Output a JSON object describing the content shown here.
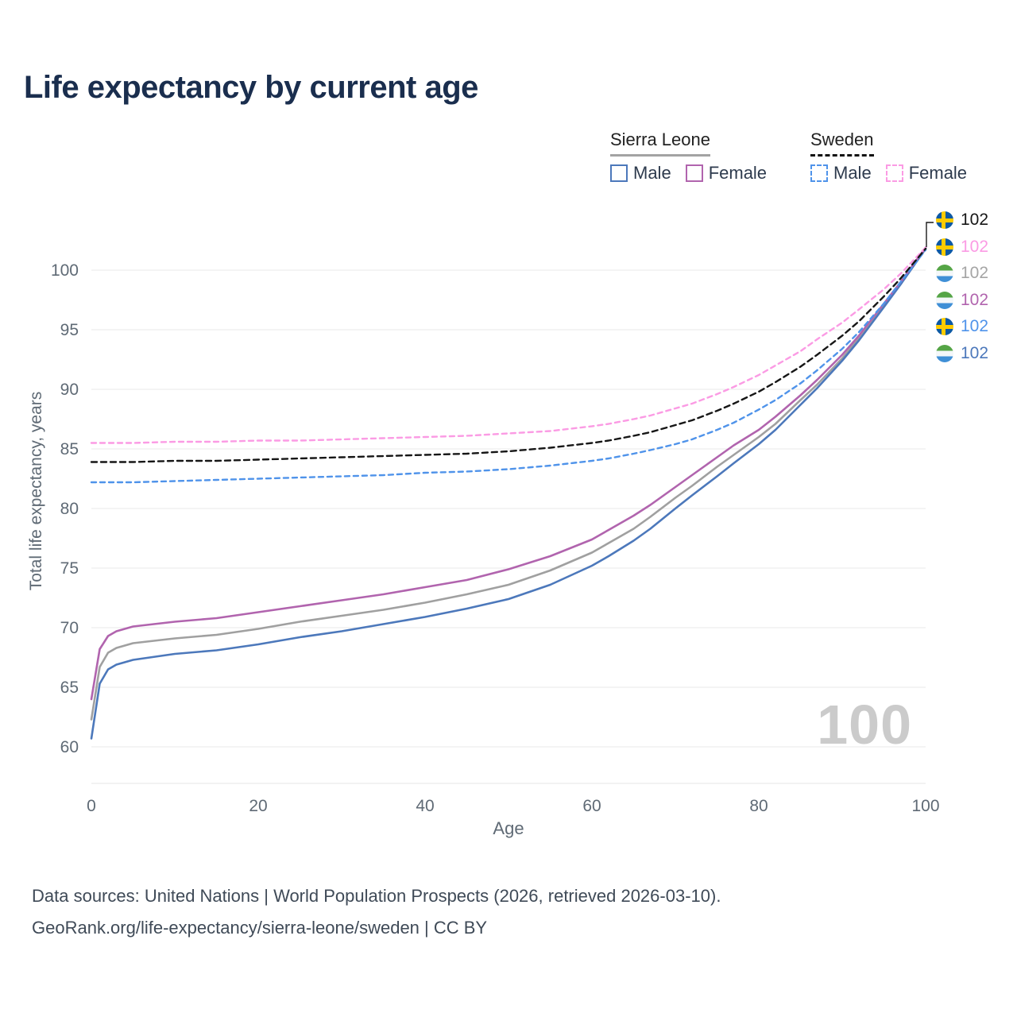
{
  "title": "Life expectancy by current age",
  "legend": {
    "groups": [
      {
        "label": "Sierra Leone",
        "line_style": "solid",
        "line_color": "#a3a3a3",
        "items": [
          {
            "label": "Male",
            "swatch_color": "#4c78bb",
            "swatch_style": "solid"
          },
          {
            "label": "Female",
            "swatch_color": "#b164ae",
            "swatch_style": "solid"
          }
        ]
      },
      {
        "label": "Sweden",
        "line_style": "dashed",
        "line_color": "#111111",
        "items": [
          {
            "label": "Male",
            "swatch_color": "#4f93ea",
            "swatch_style": "dashed"
          },
          {
            "label": "Female",
            "swatch_color": "#fb9be4",
            "swatch_style": "dashed"
          }
        ]
      }
    ]
  },
  "age_counter": "100",
  "end_labels": [
    {
      "value": "102",
      "color": "#161616",
      "flag": "sweden",
      "series": "sweden-both"
    },
    {
      "value": "102",
      "color": "#fb9be4",
      "flag": "sweden",
      "series": "sweden-female"
    },
    {
      "value": "102",
      "color": "#a5a5a5",
      "flag": "sierra-leone",
      "series": "sierra-leone-both"
    },
    {
      "value": "102",
      "color": "#b164ae",
      "flag": "sierra-leone",
      "series": "sierra-leone-female"
    },
    {
      "value": "102",
      "color": "#4f93ea",
      "flag": "sweden",
      "series": "sweden-male"
    },
    {
      "value": "102",
      "color": "#4c78bb",
      "flag": "sierra-leone",
      "series": "sierra-leone-male"
    }
  ],
  "footer": {
    "line1": "Data sources: United Nations | World Population Prospects (2026, retrieved 2026-03-10).",
    "line2": "GeoRank.org/life-expectancy/sierra-leone/sweden | CC BY"
  },
  "chart_data": {
    "type": "line",
    "title": "Life expectancy by current age",
    "xlabel": "Age",
    "ylabel": "Total life expectancy, years",
    "xlim": [
      0,
      100
    ],
    "ylim": [
      60,
      102
    ],
    "x_ticks": [
      0,
      20,
      40,
      60,
      80,
      100
    ],
    "y_ticks": [
      60,
      65,
      70,
      75,
      80,
      85,
      90,
      95,
      100
    ],
    "grid": "horizontal",
    "legend_position": "top-right",
    "x": [
      0,
      1,
      2,
      3,
      4,
      5,
      10,
      15,
      20,
      25,
      30,
      35,
      40,
      45,
      50,
      55,
      60,
      62,
      65,
      67,
      70,
      72,
      75,
      77,
      80,
      82,
      85,
      87,
      90,
      92,
      95,
      97,
      100
    ],
    "series": [
      {
        "id": "sierra-leone-both",
        "name": "Sierra Leone Both sexes",
        "color": "#a0a0a0",
        "dash": "solid",
        "values": [
          62.3,
          66.7,
          67.9,
          68.3,
          68.5,
          68.7,
          69.1,
          69.4,
          69.9,
          70.5,
          71.0,
          71.5,
          72.1,
          72.8,
          73.6,
          74.8,
          76.3,
          77.1,
          78.3,
          79.3,
          80.9,
          81.9,
          83.5,
          84.5,
          86.0,
          87.1,
          89.1,
          90.4,
          92.6,
          94.3,
          97.0,
          98.9,
          101.8
        ]
      },
      {
        "id": "sierra-leone-male",
        "name": "Sierra Leone Male",
        "color": "#4c78bb",
        "dash": "solid",
        "values": [
          60.7,
          65.3,
          66.5,
          66.9,
          67.1,
          67.3,
          67.8,
          68.1,
          68.6,
          69.2,
          69.7,
          70.3,
          70.9,
          71.6,
          72.4,
          73.6,
          75.2,
          76.0,
          77.3,
          78.3,
          80.0,
          81.1,
          82.7,
          83.8,
          85.4,
          86.6,
          88.7,
          90.1,
          92.4,
          94.1,
          96.9,
          98.8,
          101.8
        ]
      },
      {
        "id": "sierra-leone-female",
        "name": "Sierra Leone Female",
        "color": "#b164ae",
        "dash": "solid",
        "values": [
          64.0,
          68.2,
          69.3,
          69.7,
          69.9,
          70.1,
          70.5,
          70.8,
          71.3,
          71.8,
          72.3,
          72.8,
          73.4,
          74.0,
          74.9,
          76.0,
          77.4,
          78.2,
          79.4,
          80.3,
          81.8,
          82.8,
          84.3,
          85.3,
          86.6,
          87.7,
          89.5,
          90.8,
          92.9,
          94.5,
          97.2,
          99.0,
          101.9
        ]
      },
      {
        "id": "sweden-male",
        "name": "Sweden Male",
        "color": "#4f93ea",
        "dash": "dashed",
        "values": [
          82.2,
          82.2,
          82.2,
          82.2,
          82.2,
          82.2,
          82.3,
          82.4,
          82.5,
          82.6,
          82.7,
          82.8,
          83.0,
          83.1,
          83.3,
          83.6,
          84.0,
          84.2,
          84.6,
          84.9,
          85.4,
          85.8,
          86.6,
          87.2,
          88.3,
          89.1,
          90.5,
          91.6,
          93.4,
          94.8,
          97.2,
          99.0,
          101.7
        ]
      },
      {
        "id": "sweden-female",
        "name": "Sweden Female",
        "color": "#fb9be4",
        "dash": "dashed",
        "values": [
          85.5,
          85.5,
          85.5,
          85.5,
          85.5,
          85.5,
          85.6,
          85.6,
          85.7,
          85.7,
          85.8,
          85.9,
          86.0,
          86.1,
          86.3,
          86.5,
          86.9,
          87.1,
          87.5,
          87.8,
          88.4,
          88.8,
          89.6,
          90.2,
          91.2,
          92.0,
          93.2,
          94.2,
          95.6,
          96.7,
          98.4,
          99.7,
          101.9
        ]
      },
      {
        "id": "sweden-both",
        "name": "Sweden Both sexes",
        "color": "#161616",
        "dash": "dashed",
        "values": [
          83.9,
          83.9,
          83.9,
          83.9,
          83.9,
          83.9,
          84.0,
          84.0,
          84.1,
          84.2,
          84.3,
          84.4,
          84.5,
          84.6,
          84.8,
          85.1,
          85.5,
          85.7,
          86.1,
          86.4,
          87.0,
          87.4,
          88.2,
          88.8,
          89.8,
          90.6,
          91.9,
          92.9,
          94.5,
          95.7,
          97.8,
          99.3,
          101.8
        ]
      }
    ]
  }
}
